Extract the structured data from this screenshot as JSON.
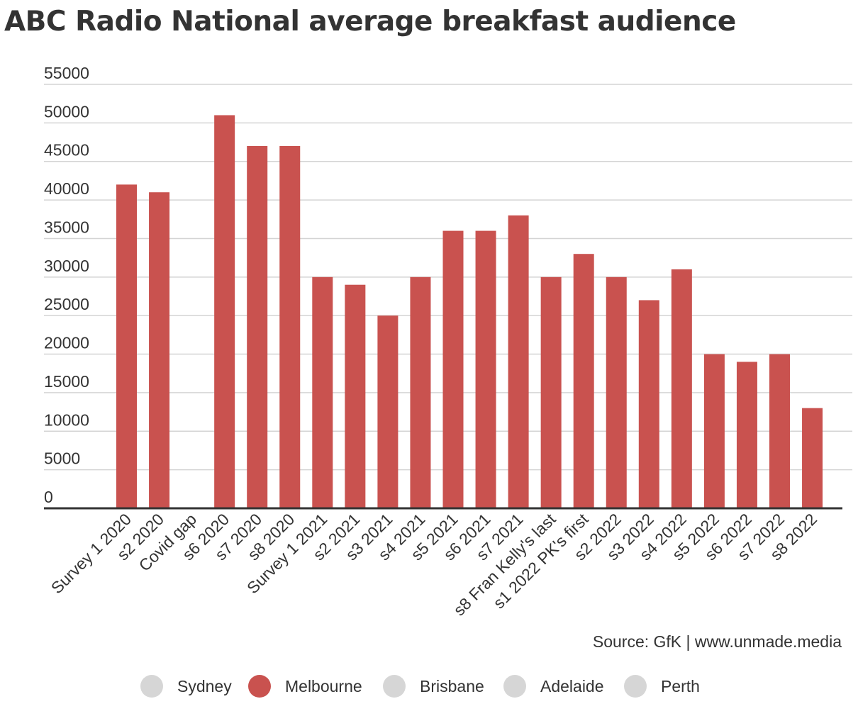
{
  "title": "ABC Radio National average breakfast audience",
  "source": "Source: GfK | www.unmade.media",
  "legend": [
    {
      "label": "Sydney",
      "color": "#d6d6d6",
      "active": false
    },
    {
      "label": "Melbourne",
      "color": "#c9524f",
      "active": true
    },
    {
      "label": "Brisbane",
      "color": "#d6d6d6",
      "active": false
    },
    {
      "label": "Adelaide",
      "color": "#d6d6d6",
      "active": false
    },
    {
      "label": "Perth",
      "color": "#d6d6d6",
      "active": false
    }
  ],
  "chart_data": {
    "type": "bar",
    "categories": [
      "Survey 1 2020",
      "s2 2020",
      "Covid gap",
      "s6 2020",
      "s7 2020",
      "s8 2020",
      "Survey 1 2021",
      "s2 2021",
      "s3 2021",
      "s4 2021",
      "s5 2021",
      "s6 2021",
      "s7 2021",
      "s8 Fran Kelly's last",
      "s1 2022 PK's first",
      "s2 2022",
      "s3 2022",
      "s4 2022",
      "s5 2022",
      "s6 2022",
      "s7 2022",
      "s8 2022"
    ],
    "series": [
      {
        "name": "Melbourne",
        "color": "#c9524f",
        "values": [
          42000,
          41000,
          null,
          51000,
          47000,
          47000,
          30000,
          29000,
          25000,
          30000,
          36000,
          36000,
          38000,
          30000,
          33000,
          30000,
          27000,
          31000,
          20000,
          19000,
          20000,
          13000
        ]
      }
    ],
    "yticks": [
      0,
      5000,
      10000,
      15000,
      20000,
      25000,
      30000,
      35000,
      40000,
      45000,
      50000,
      55000
    ],
    "ylim": [
      0,
      55000
    ],
    "xlabel": "",
    "ylabel": "",
    "grid": true
  }
}
